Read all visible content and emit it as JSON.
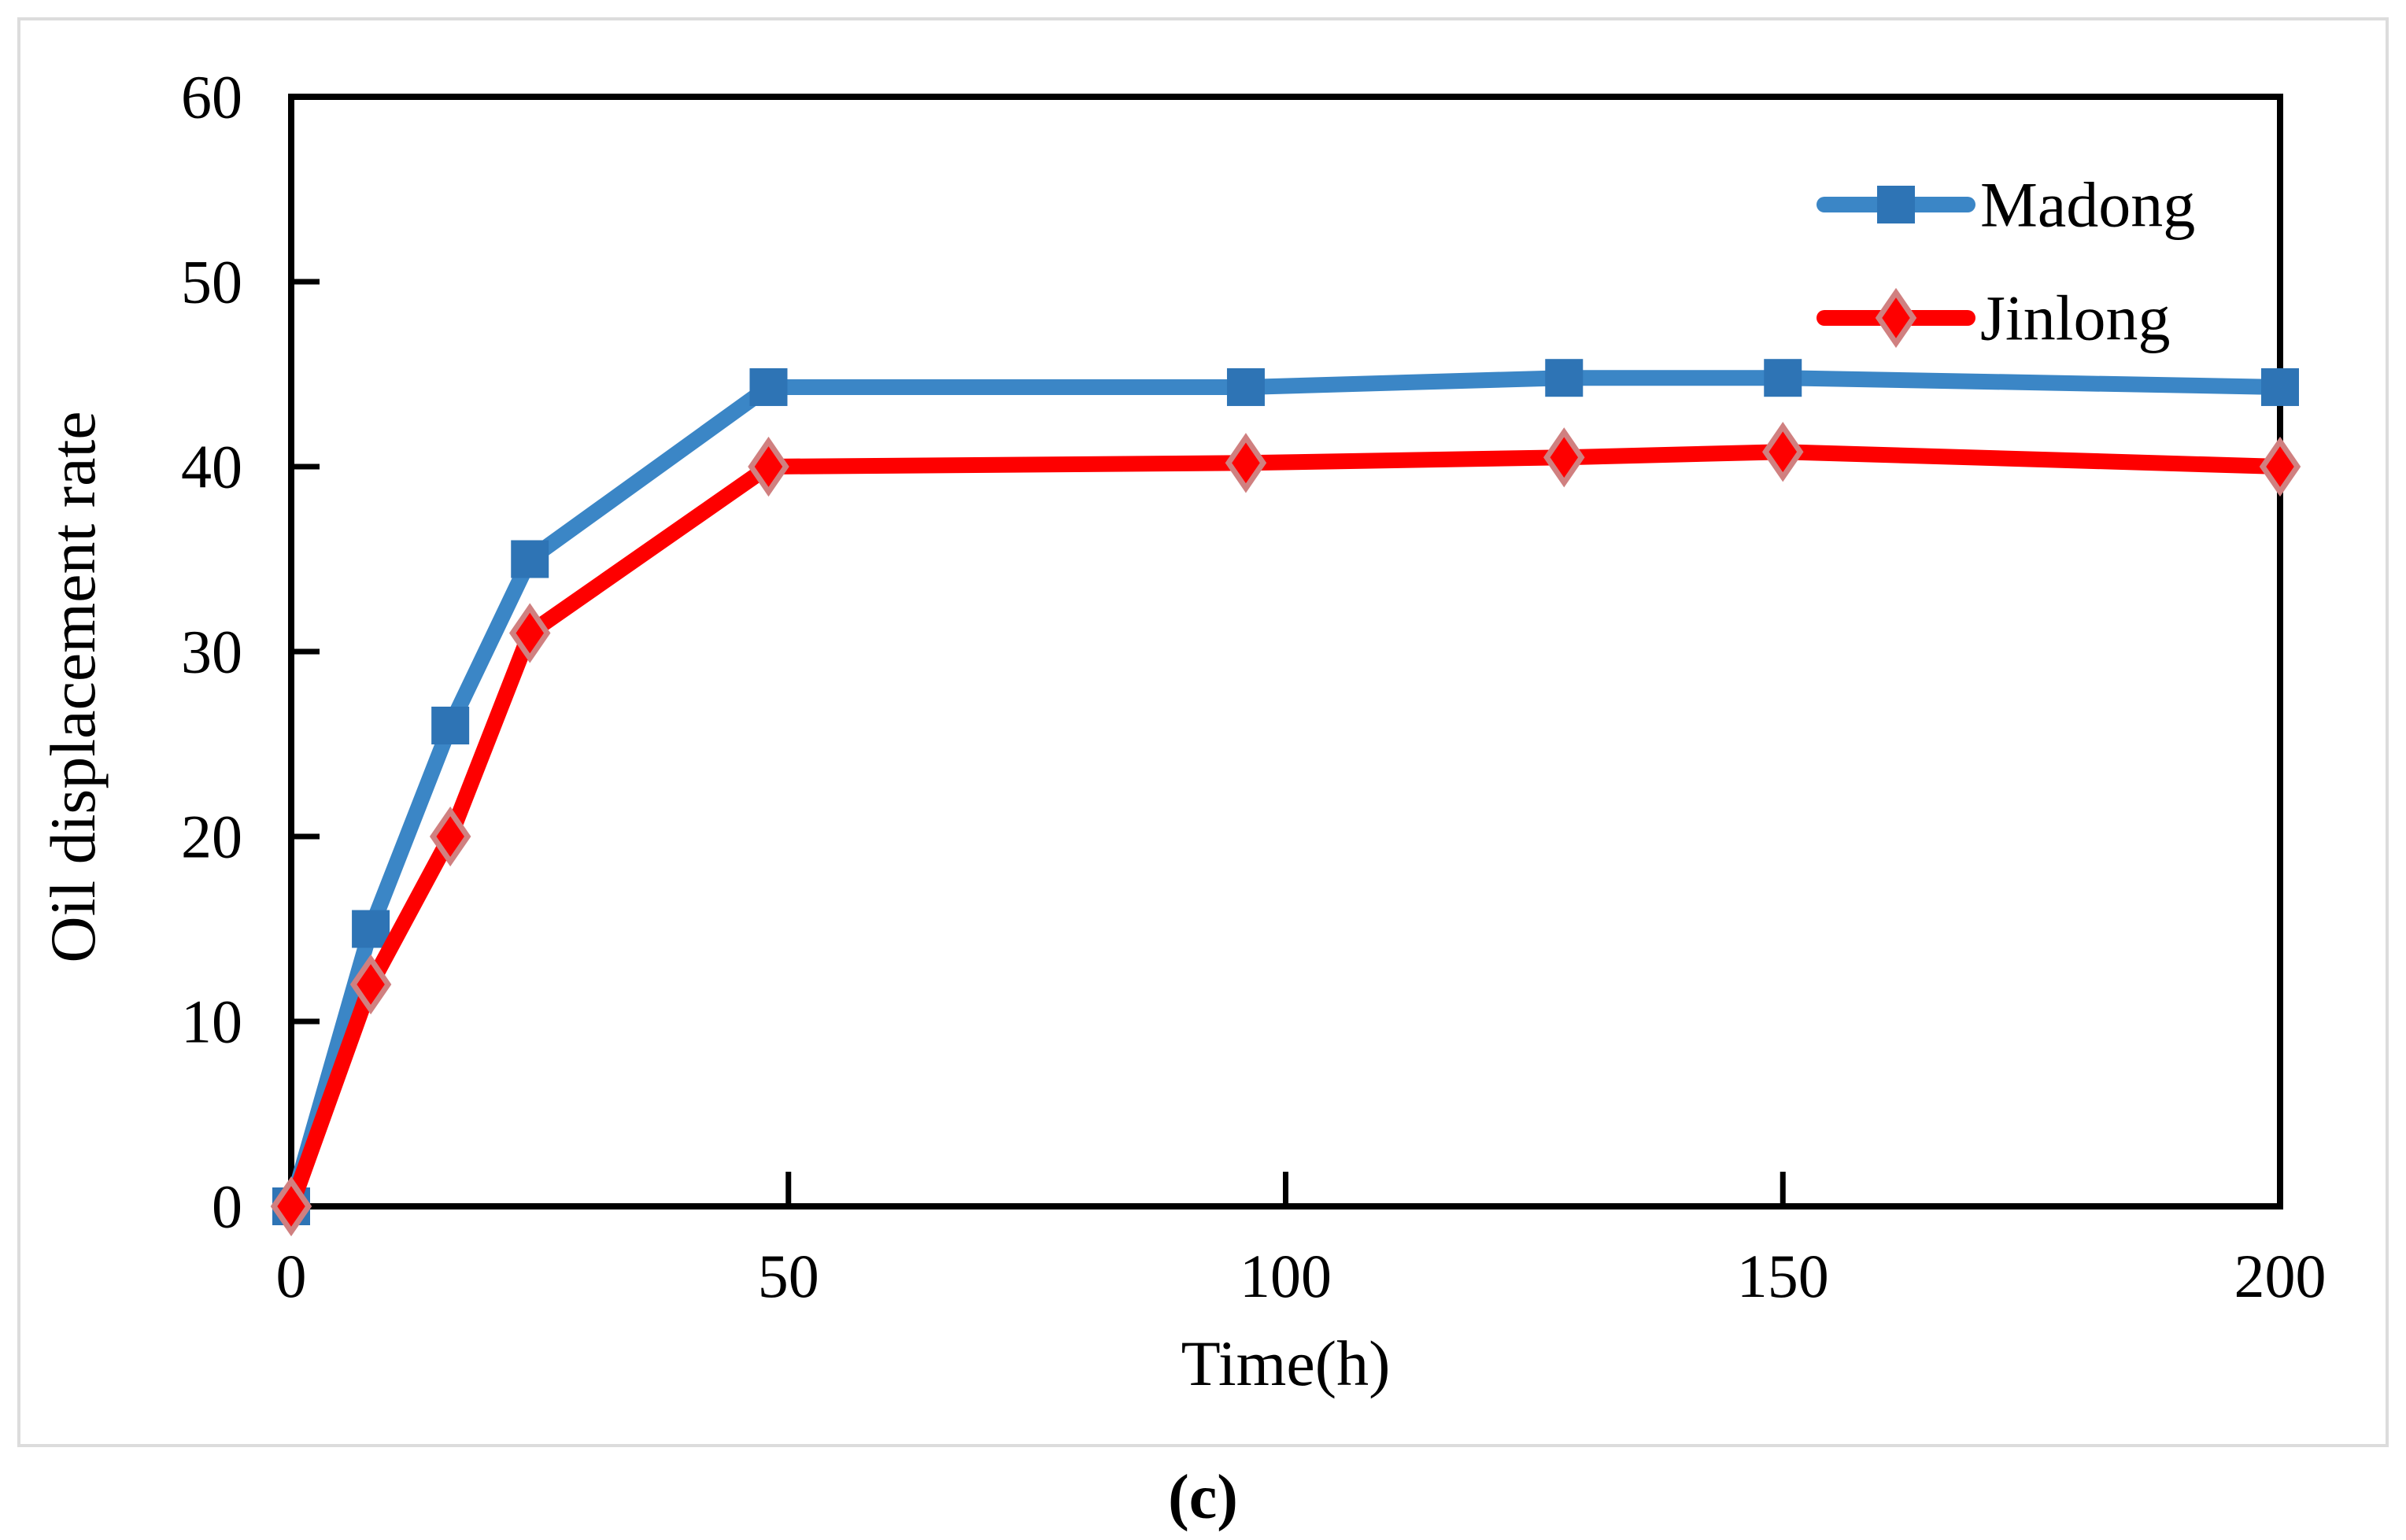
{
  "figure": {
    "caption": "(c)"
  },
  "colors": {
    "axis": "#000000",
    "text": "#000000",
    "panel_border": "#dcdcdc",
    "madong_line": "#3b86c6",
    "madong_marker": "#2e74b5",
    "jinlong_line": "#fe0000",
    "jinlong_marker": "#fe0000",
    "jinlong_marker_border": "#d08080"
  },
  "chart_data": {
    "type": "line",
    "title": "",
    "xlabel": "Time(h)",
    "ylabel": "Oil displacement rate",
    "xlim": [
      0,
      200
    ],
    "ylim": [
      0,
      60
    ],
    "x_ticks": [
      0,
      50,
      100,
      150,
      200
    ],
    "y_ticks": [
      0,
      10,
      20,
      30,
      40,
      50,
      60
    ],
    "grid": false,
    "legend_position": "top-right-inside",
    "x": [
      0,
      8,
      16,
      24,
      48,
      96,
      128,
      150,
      200
    ],
    "series": [
      {
        "name": "Madong",
        "marker": "square",
        "line_color": "#3b86c6",
        "marker_color": "#2e74b5",
        "values": [
          0,
          15,
          26,
          35,
          44.3,
          44.3,
          44.8,
          44.8,
          44.3
        ]
      },
      {
        "name": "Jinlong",
        "marker": "diamond",
        "line_color": "#fe0000",
        "marker_color": "#fe0000",
        "marker_border": "#d08080",
        "values": [
          0,
          12,
          20,
          31,
          40.0,
          40.2,
          40.5,
          40.8,
          40.0
        ]
      }
    ]
  }
}
